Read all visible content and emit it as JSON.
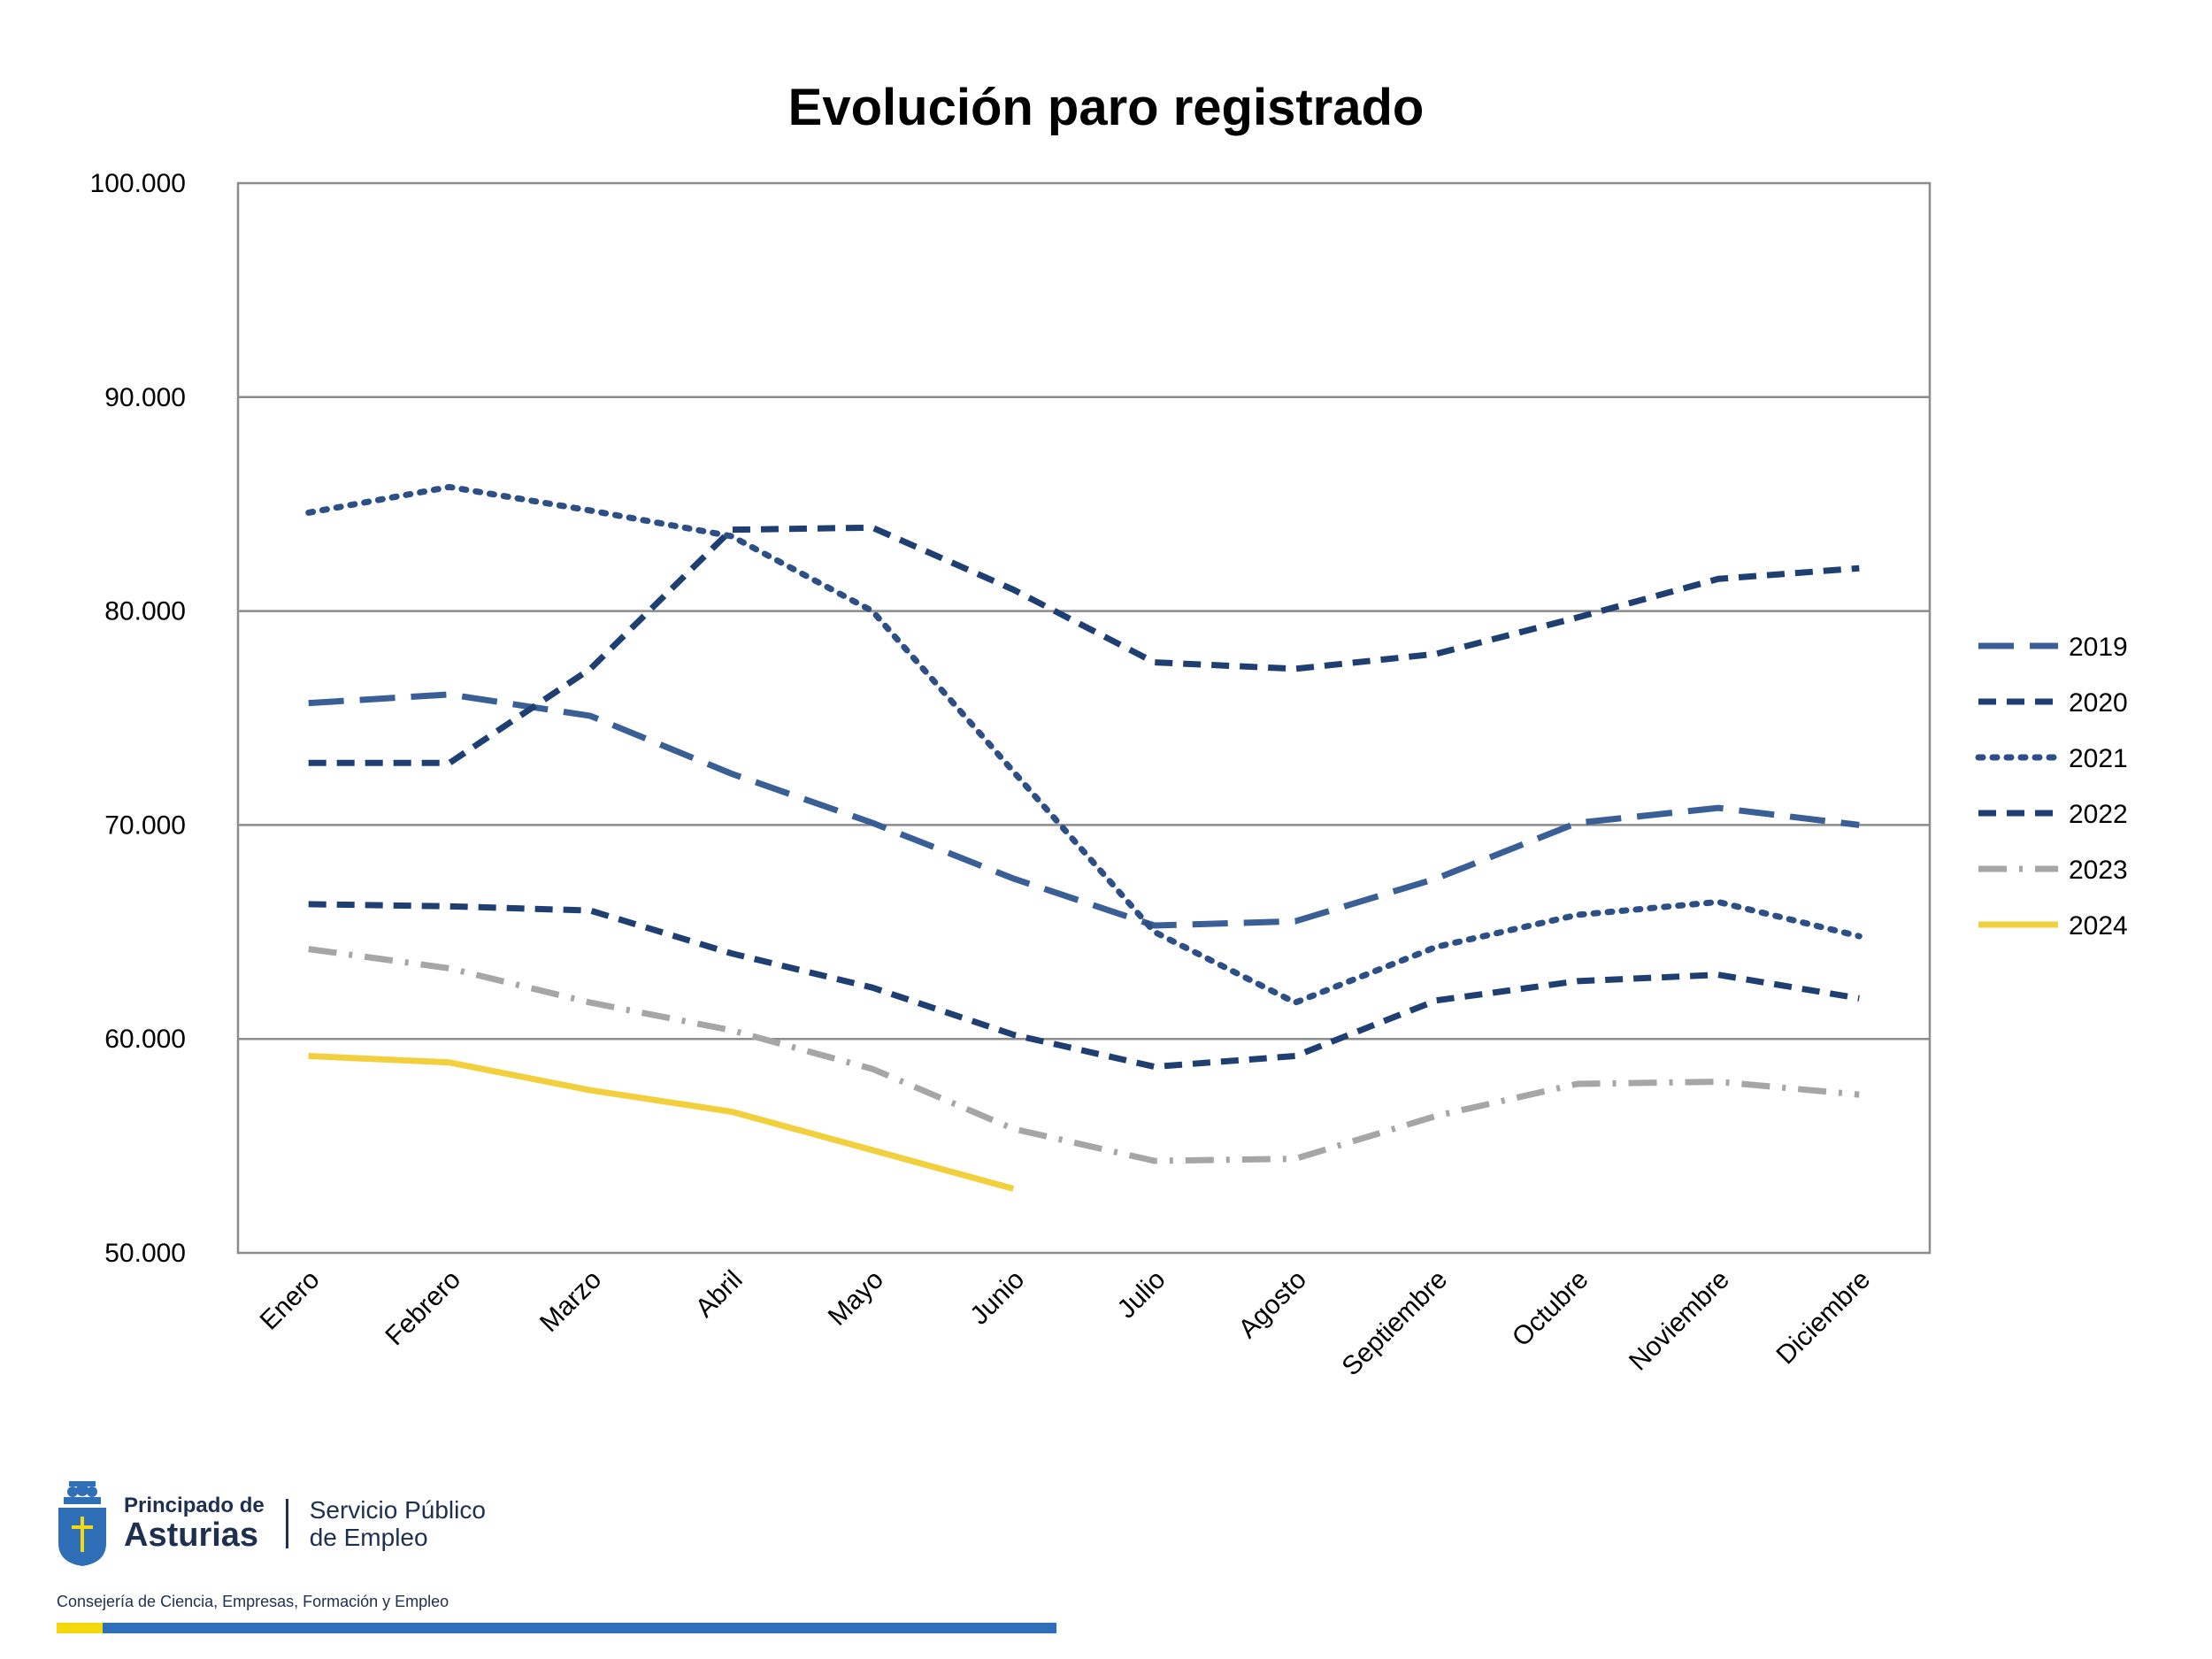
{
  "chart_data": {
    "type": "line",
    "title": "Evolución paro registrado",
    "xlabel": "",
    "ylabel": "",
    "ylim": [
      50000,
      100000
    ],
    "yticks": [
      50000,
      60000,
      70000,
      80000,
      90000,
      100000
    ],
    "ytick_labels": [
      "50.000",
      "60.000",
      "70.000",
      "80.000",
      "90.000",
      "100.000"
    ],
    "grid": true,
    "legend_position": "right",
    "categories": [
      "Enero",
      "Febrero",
      "Marzo",
      "Abril",
      "Mayo",
      "Junio",
      "Julio",
      "Agosto",
      "Septiembre",
      "Octubre",
      "Noviembre",
      "Diciembre"
    ],
    "series": [
      {
        "name": "2019",
        "color": "#3a5f96",
        "style": "long-dash",
        "values": [
          75700,
          76100,
          75100,
          72400,
          70100,
          67500,
          65300,
          65500,
          67500,
          70100,
          70800,
          70000
        ]
      },
      {
        "name": "2020",
        "color": "#1f3f73",
        "style": "dash",
        "values": [
          72900,
          72900,
          77300,
          83800,
          83900,
          81000,
          77600,
          77300,
          78000,
          79700,
          81500,
          82000
        ]
      },
      {
        "name": "2021",
        "color": "#2d4f86",
        "style": "dot",
        "values": [
          84600,
          85800,
          84700,
          83500,
          80000,
          72500,
          65000,
          61700,
          64300,
          65800,
          66400,
          64800
        ]
      },
      {
        "name": "2022",
        "color": "#1f3f73",
        "style": "dash",
        "values": [
          66300,
          66200,
          66000,
          64000,
          62400,
          60200,
          58700,
          59200,
          61800,
          62700,
          63000,
          61900
        ]
      },
      {
        "name": "2023",
        "color": "#a6a6a6",
        "style": "dash-dot",
        "values": [
          64200,
          63300,
          61700,
          60400,
          58600,
          55800,
          54300,
          54400,
          56400,
          57900,
          58000,
          57400
        ]
      },
      {
        "name": "2024",
        "color": "#f2cf3d",
        "style": "solid",
        "values": [
          59200,
          58900,
          57600,
          56600,
          54800,
          53000,
          null,
          null,
          null,
          null,
          null,
          null
        ]
      }
    ]
  },
  "footer": {
    "org_line1": "Principado de",
    "org_line2": "Asturias",
    "service_line1": "Servicio Público",
    "service_line2": "de Empleo",
    "consejeria": "Consejería de Ciencia, Empresas, Formación y Empleo"
  }
}
